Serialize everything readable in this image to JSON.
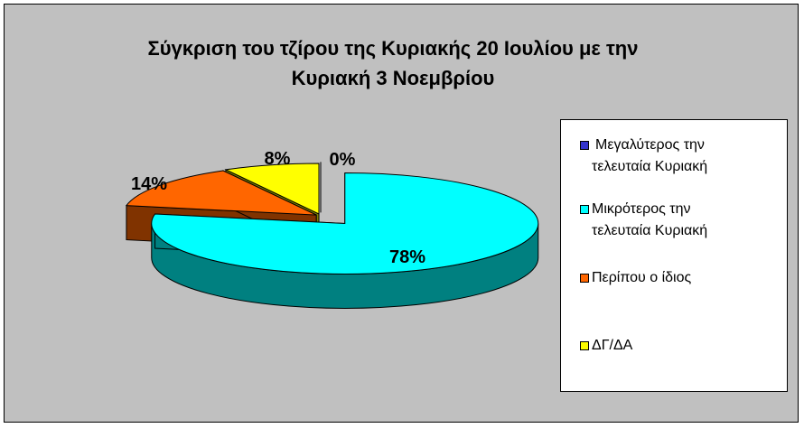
{
  "chart_data": {
    "type": "pie",
    "three_d": true,
    "title": "Σύγκριση του τζίρου της Κυριακής 20 Ιουλίου με την Κυριακή 3 Νοεμβρίου",
    "title_lines": [
      "Σύγκριση του τζίρου της Κυριακής 20 Ιουλίου με την",
      "Κυριακή 3 Νοεμβρίου"
    ],
    "background": "#c0c0c0",
    "legend_position": "right",
    "slices": [
      {
        "label": "Μεγαλύτερος την τελευταία Κυριακή",
        "label_lines": [
          "Μεγαλύτερος την",
          "τελευταία Κυριακή"
        ],
        "value": 0,
        "data_label": "0%",
        "color": "#3333cc",
        "side_color": "#1a1a66"
      },
      {
        "label": "Μικρότερος την τελευταία Κυριακή",
        "label_lines": [
          "Μικρότερος την",
          "τελευταία Κυριακή"
        ],
        "value": 78,
        "data_label": "78%",
        "color": "#00ffff",
        "side_color": "#008080"
      },
      {
        "label": "Περίπου ο ίδιος",
        "label_lines": [
          "Περίπου ο ίδιος"
        ],
        "value": 14,
        "data_label": "14%",
        "color": "#ff6600",
        "side_color": "#803300"
      },
      {
        "label": "ΔΓ/ΔΑ",
        "label_lines": [
          "ΔΓ/ΔΑ"
        ],
        "value": 8,
        "data_label": "8%",
        "color": "#ffff00",
        "side_color": "#808000"
      }
    ]
  }
}
